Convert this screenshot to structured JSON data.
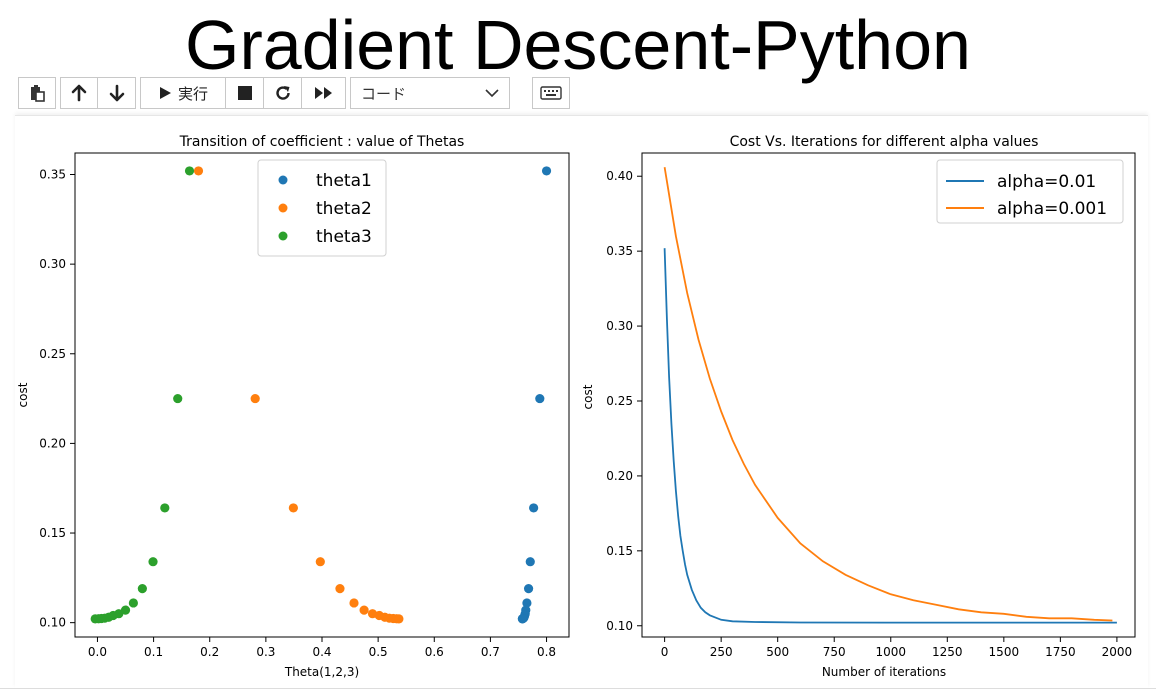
{
  "slide": {
    "title": "Gradient Descent-Python"
  },
  "toolbar": {
    "run_label": "実行",
    "cell_type": "コード",
    "icons": [
      "paste-icon",
      "arrow-up-icon",
      "arrow-down-icon",
      "play-icon",
      "stop-icon",
      "restart-icon",
      "fast-forward-icon",
      "chevron-down-icon",
      "keyboard-icon"
    ]
  },
  "chart_data": [
    {
      "type": "scatter",
      "title": "Transition of coefficient : value of Thetas",
      "xlabel": "Theta(1,2,3)",
      "ylabel": "cost",
      "xlim": [
        -0.04,
        0.84
      ],
      "ylim": [
        0.092,
        0.362
      ],
      "xticks": [
        0.0,
        0.1,
        0.2,
        0.3,
        0.4,
        0.5,
        0.6,
        0.7,
        0.8
      ],
      "xtick_labels": [
        "0.0",
        "0.1",
        "0.2",
        "0.3",
        "0.4",
        "0.5",
        "0.6",
        "0.7",
        "0.8"
      ],
      "yticks": [
        0.1,
        0.15,
        0.2,
        0.25,
        0.3,
        0.35
      ],
      "ytick_labels": [
        "0.10",
        "0.15",
        "0.20",
        "0.25",
        "0.30",
        "0.35"
      ],
      "grid": false,
      "legend": "top-center",
      "series": [
        {
          "name": "theta1",
          "color": "#1f77b4",
          "points": [
            [
              0.8,
              0.352
            ],
            [
              0.788,
              0.225
            ],
            [
              0.777,
              0.164
            ],
            [
              0.771,
              0.134
            ],
            [
              0.768,
              0.119
            ],
            [
              0.765,
              0.111
            ],
            [
              0.763,
              0.107
            ],
            [
              0.762,
              0.105
            ],
            [
              0.761,
              0.104
            ],
            [
              0.76,
              0.103
            ],
            [
              0.759,
              0.1025
            ],
            [
              0.758,
              0.1023
            ],
            [
              0.757,
              0.1022
            ],
            [
              0.757,
              0.1021
            ]
          ]
        },
        {
          "name": "theta2",
          "color": "#ff7f0e",
          "points": [
            [
              0.18,
              0.352
            ],
            [
              0.281,
              0.225
            ],
            [
              0.349,
              0.164
            ],
            [
              0.397,
              0.134
            ],
            [
              0.432,
              0.119
            ],
            [
              0.457,
              0.111
            ],
            [
              0.475,
              0.107
            ],
            [
              0.49,
              0.105
            ],
            [
              0.502,
              0.104
            ],
            [
              0.512,
              0.103
            ],
            [
              0.52,
              0.1025
            ],
            [
              0.527,
              0.1023
            ],
            [
              0.533,
              0.1022
            ],
            [
              0.537,
              0.1021
            ]
          ]
        },
        {
          "name": "theta3",
          "color": "#2ca02c",
          "points": [
            [
              0.164,
              0.352
            ],
            [
              0.143,
              0.225
            ],
            [
              0.12,
              0.164
            ],
            [
              0.099,
              0.134
            ],
            [
              0.08,
              0.119
            ],
            [
              0.064,
              0.111
            ],
            [
              0.05,
              0.107
            ],
            [
              0.038,
              0.105
            ],
            [
              0.028,
              0.104
            ],
            [
              0.02,
              0.103
            ],
            [
              0.013,
              0.1025
            ],
            [
              0.007,
              0.1023
            ],
            [
              0.002,
              0.1022
            ],
            [
              -0.004,
              0.1021
            ]
          ]
        }
      ]
    },
    {
      "type": "line",
      "title": "Cost Vs. Iterations for different alpha values",
      "xlabel": "Number of iterations",
      "ylabel": "cost",
      "xlim": [
        -100,
        2080
      ],
      "ylim": [
        0.0925,
        0.4155
      ],
      "xticks": [
        0,
        250,
        500,
        750,
        1000,
        1250,
        1500,
        1750,
        2000
      ],
      "xtick_labels": [
        "0",
        "250",
        "500",
        "750",
        "1000",
        "1250",
        "1500",
        "1750",
        "2000"
      ],
      "yticks": [
        0.1,
        0.15,
        0.2,
        0.25,
        0.3,
        0.35,
        0.4
      ],
      "ytick_labels": [
        "0.10",
        "0.15",
        "0.20",
        "0.25",
        "0.30",
        "0.35",
        "0.40"
      ],
      "grid": false,
      "legend": "top-right",
      "series": [
        {
          "name": "alpha=0.01",
          "color": "#1f77b4",
          "x": [
            0,
            10,
            20,
            30,
            40,
            50,
            60,
            70,
            80,
            90,
            100,
            120,
            140,
            160,
            180,
            200,
            250,
            300,
            400,
            600,
            1000,
            1500,
            2000
          ],
          "y": [
            0.352,
            0.305,
            0.266,
            0.235,
            0.21,
            0.19,
            0.173,
            0.16,
            0.15,
            0.141,
            0.134,
            0.124,
            0.117,
            0.112,
            0.109,
            0.107,
            0.104,
            0.103,
            0.1025,
            0.1022,
            0.1021,
            0.1021,
            0.1021
          ]
        },
        {
          "name": "alpha=0.001",
          "color": "#ff7f0e",
          "x": [
            0,
            50,
            100,
            150,
            200,
            250,
            300,
            350,
            400,
            500,
            600,
            700,
            800,
            900,
            1000,
            1100,
            1200,
            1300,
            1400,
            1500,
            1600,
            1700,
            1800,
            1900,
            1980
          ],
          "y": [
            0.406,
            0.36,
            0.322,
            0.291,
            0.265,
            0.243,
            0.224,
            0.208,
            0.194,
            0.172,
            0.155,
            0.143,
            0.134,
            0.127,
            0.121,
            0.117,
            0.114,
            0.111,
            0.109,
            0.108,
            0.106,
            0.105,
            0.105,
            0.104,
            0.1035
          ]
        }
      ]
    }
  ]
}
